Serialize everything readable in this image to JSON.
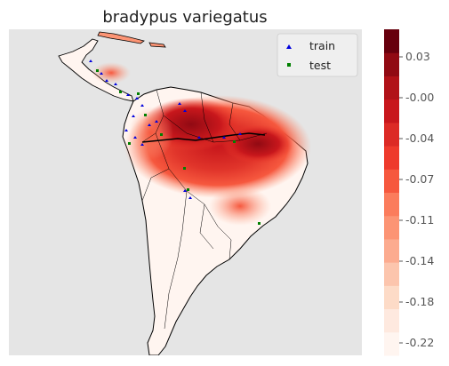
{
  "title": "bradypus variegatus",
  "legend": [
    {
      "label": "train",
      "color": "#0000dd",
      "marker": "triangle"
    },
    {
      "label": "test",
      "color": "#008000",
      "marker": "square"
    }
  ],
  "colorbar": {
    "colormap": "Reds",
    "ticks": [
      "0.03",
      "-0.00",
      "-0.04",
      "-0.07",
      "-0.11",
      "-0.14",
      "-0.18",
      "-0.22"
    ],
    "colors": [
      "#fff5f0",
      "#fee9df",
      "#fddbc7",
      "#fcc5ad",
      "#fcab8f",
      "#fc9474",
      "#fb7c5c",
      "#f6583e",
      "#ee3a2c",
      "#dc2a25",
      "#c8171c",
      "#b11218",
      "#910a13",
      "#67000d"
    ]
  },
  "map": {
    "background": "#e5e5e5",
    "land_color": "#ffffff",
    "border_color": "#000000"
  }
}
